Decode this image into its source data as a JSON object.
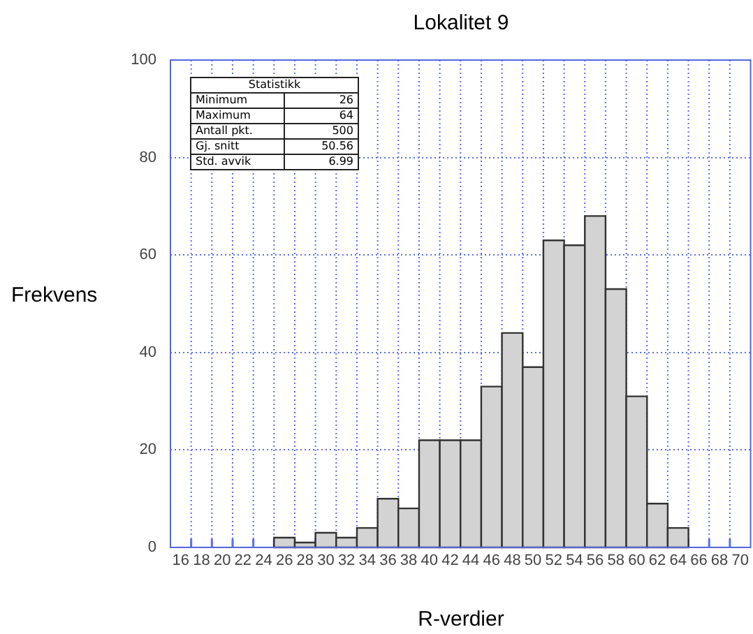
{
  "chart_data": {
    "type": "histogram",
    "title": "Lokalitet 9",
    "xlabel": "R-verdier",
    "ylabel": "Frekvens",
    "bins": [
      25,
      27,
      29,
      31,
      33,
      35,
      37,
      39,
      41,
      43,
      45,
      47,
      49,
      51,
      53,
      55,
      57,
      59,
      61,
      63,
      65
    ],
    "values": [
      2,
      1,
      3,
      2,
      4,
      10,
      8,
      22,
      22,
      22,
      33,
      44,
      37,
      63,
      62,
      68,
      53,
      31,
      9,
      4
    ],
    "color": "#d3d3d3",
    "xlim": [
      15,
      71
    ],
    "xticks": [
      16,
      {
        "value": 17,
        "label": null
      },
      18,
      {
        "value": 19,
        "label": null
      },
      20,
      {
        "value": 21,
        "label": null
      },
      22,
      {
        "value": 23,
        "label": null
      },
      24,
      {
        "value": 25,
        "label": null
      },
      26,
      {
        "value": 27,
        "label": null
      },
      28,
      {
        "value": 29,
        "label": null
      },
      30,
      {
        "value": 31,
        "label": null
      },
      32,
      {
        "value": 33,
        "label": null
      },
      34,
      {
        "value": 35,
        "label": null
      },
      36,
      {
        "value": 37,
        "label": null
      },
      38,
      {
        "value": 39,
        "label": null
      },
      40,
      {
        "value": 41,
        "label": null
      },
      42,
      {
        "value": 43,
        "label": null
      },
      44,
      {
        "value": 45,
        "label": null
      },
      46,
      {
        "value": 47,
        "label": null
      },
      48,
      {
        "value": 49,
        "label": null
      },
      50,
      {
        "value": 51,
        "label": null
      },
      52,
      {
        "value": 53,
        "label": null
      },
      54,
      {
        "value": 55,
        "label": null
      },
      56,
      {
        "value": 57,
        "label": null
      },
      58,
      {
        "value": 59,
        "label": null
      },
      60,
      {
        "value": 61,
        "label": null
      },
      62,
      {
        "value": 63,
        "label": null
      },
      64,
      {
        "value": 65,
        "label": null
      },
      66,
      {
        "value": 67,
        "label": null
      },
      68,
      {
        "value": 69,
        "label": null
      },
      70
    ],
    "ylim": [
      0,
      100
    ],
    "yticks": [
      0,
      20,
      40,
      60,
      80,
      100
    ],
    "grid": true,
    "line_style": "dotted",
    "annotations": [
      "Statistikk",
      "Minimum",
      "26",
      "Maximum",
      "64",
      "Antall pkt.",
      "500",
      "Gj. snitt",
      "50.56",
      "Std. avvik",
      "6.99"
    ]
  }
}
